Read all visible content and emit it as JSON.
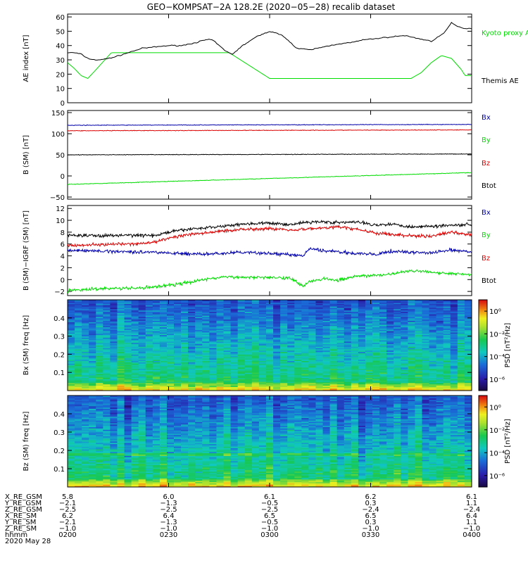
{
  "title": "GEO−KOMPSAT−2A 128.2E (2020−05−28) recalib dataset",
  "x_axis": {
    "ticks": [
      "0200",
      "0230",
      "0300",
      "0330",
      "0400"
    ],
    "start_min": 120,
    "end_min": 240
  },
  "ephemeris": {
    "rows": [
      {
        "label": "X_RE_GSM",
        "values": [
          "5.8",
          "6.0",
          "6.1",
          "6.2",
          "6.1"
        ]
      },
      {
        "label": "Y_RE_GSM",
        "values": [
          "−2.1",
          "−1.3",
          "−0.5",
          "0.3",
          "1.1"
        ]
      },
      {
        "label": "Z_RE_GSM",
        "values": [
          "−2.5",
          "−2.5",
          "−2.5",
          "−2.4",
          "−2.4"
        ]
      },
      {
        "label": "X_RE_SM",
        "values": [
          "6.2",
          "6.4",
          "6.5",
          "6.5",
          "6.4"
        ]
      },
      {
        "label": "Y_RE_SM",
        "values": [
          "−2.1",
          "−1.3",
          "−0.5",
          "0.3",
          "1.1"
        ]
      },
      {
        "label": "Z_RE_SM",
        "values": [
          "−1.0",
          "−1.0",
          "−1.0",
          "−1.0",
          "−1.0"
        ]
      },
      {
        "label": "hhmm",
        "values": [
          "0200",
          "0230",
          "0300",
          "0330",
          "0400"
        ]
      }
    ],
    "date": "2020 May 28"
  },
  "chart_data": [
    {
      "type": "line",
      "ylabel": "AE index [nT]",
      "ylim": [
        0,
        62
      ],
      "yticks": [
        "0",
        "10",
        "20",
        "30",
        "40",
        "50",
        "60"
      ],
      "series": [
        {
          "name": "Kyoto proxy AE",
          "color": "#00dd00",
          "x": [
            120,
            122,
            124,
            126,
            128,
            133,
            137,
            160,
            168,
            180,
            190,
            200,
            210,
            218,
            222,
            225,
            228,
            231,
            234,
            237,
            238
          ],
          "y": [
            28,
            24,
            19,
            17,
            22,
            35,
            35,
            35,
            35,
            17,
            17,
            17,
            17,
            17,
            17,
            21,
            28,
            33,
            31,
            23,
            19
          ]
        },
        {
          "name": "Themis AE",
          "color": "#000000",
          "x": [
            120,
            122,
            124,
            126,
            128,
            130,
            134,
            138,
            142,
            146,
            150,
            154,
            158,
            161,
            163,
            165,
            167,
            169,
            172,
            176,
            180,
            184,
            188,
            192,
            196,
            200,
            204,
            208,
            212,
            216,
            220,
            224,
            228,
            230,
            232,
            234,
            236,
            238,
            240
          ],
          "y": [
            35,
            35,
            34,
            31,
            30,
            30,
            32,
            35,
            38,
            39,
            40,
            40,
            42,
            44,
            44,
            40,
            36,
            34,
            40,
            46,
            50,
            47,
            38,
            37,
            39,
            41,
            42,
            44,
            45,
            46,
            47,
            45,
            43,
            46,
            49,
            56,
            53,
            52,
            52
          ]
        }
      ],
      "legend_position": "right"
    },
    {
      "type": "line",
      "ylabel": "B (SM) [nT]",
      "ylim": [
        -55,
        155
      ],
      "yticks": [
        "−50",
        "0",
        "50",
        "100",
        "150"
      ],
      "series": [
        {
          "name": "Bx",
          "color": "#0000aa",
          "x": [
            120,
            240
          ],
          "y": [
            120,
            122
          ]
        },
        {
          "name": "By",
          "color": "#00dd00",
          "x": [
            120,
            240
          ],
          "y": [
            -20,
            8
          ]
        },
        {
          "name": "Bz",
          "color": "#dd0000",
          "x": [
            120,
            240
          ],
          "y": [
            107,
            109
          ]
        },
        {
          "name": "Btot",
          "color": "#000000",
          "x": [
            120,
            240
          ],
          "y": [
            50,
            52
          ]
        }
      ],
      "legend_position": "right"
    },
    {
      "type": "line",
      "ylabel": "B (SM)−IGRF (SM) [nT]",
      "ylim": [
        -2.7,
        12.5
      ],
      "yticks": [
        "−2",
        "0",
        "2",
        "4",
        "6",
        "8",
        "10",
        "12"
      ],
      "series": [
        {
          "name": "Btot",
          "color": "#000000",
          "x": [
            120,
            130,
            140,
            146,
            150,
            156,
            160,
            166,
            172,
            180,
            186,
            190,
            196,
            200,
            206,
            212,
            216,
            222,
            228,
            234,
            240
          ],
          "y": [
            7.5,
            7.4,
            7.5,
            7.4,
            8.0,
            8.5,
            8.7,
            9.0,
            9.4,
            9.5,
            9.3,
            9.6,
            9.8,
            9.6,
            9.7,
            9.2,
            9.4,
            8.9,
            9.0,
            9.2,
            9.3
          ]
        },
        {
          "name": "Bz",
          "color": "#dd0000",
          "x": [
            120,
            130,
            140,
            146,
            150,
            156,
            160,
            166,
            172,
            180,
            186,
            190,
            196,
            200,
            206,
            212,
            216,
            222,
            228,
            234,
            240
          ],
          "y": [
            5.8,
            5.9,
            6.0,
            6.3,
            7.0,
            7.6,
            7.8,
            8.2,
            8.5,
            8.6,
            8.4,
            8.5,
            8.7,
            8.9,
            8.5,
            7.8,
            7.6,
            7.4,
            7.3,
            8.0,
            7.6
          ]
        },
        {
          "name": "Bx",
          "color": "#0000aa",
          "x": [
            120,
            130,
            140,
            146,
            150,
            156,
            160,
            166,
            172,
            180,
            186,
            190,
            192,
            196,
            200,
            206,
            212,
            216,
            222,
            228,
            234,
            240
          ],
          "y": [
            4.9,
            4.8,
            4.7,
            4.6,
            4.5,
            4.3,
            4.3,
            4.4,
            4.6,
            4.4,
            4.2,
            4.0,
            5.2,
            4.9,
            4.7,
            4.4,
            4.2,
            4.8,
            4.6,
            4.5,
            5.0,
            4.6
          ]
        },
        {
          "name": "By",
          "color": "#00dd00",
          "x": [
            120,
            130,
            140,
            146,
            150,
            156,
            160,
            166,
            172,
            180,
            186,
            190,
            192,
            196,
            200,
            206,
            212,
            216,
            222,
            228,
            234,
            240
          ],
          "y": [
            -1.9,
            -1.5,
            -1.5,
            -1.2,
            -1.0,
            -0.5,
            0.0,
            0.4,
            0.4,
            0.4,
            0.3,
            -1.1,
            -0.3,
            0.2,
            -0.2,
            0.6,
            0.7,
            0.9,
            1.5,
            1.3,
            1.0,
            0.9
          ]
        }
      ],
      "legend": [
        "Bx",
        "By",
        "Bz",
        "Btot"
      ],
      "legend_colors": [
        "#0000aa",
        "#00dd00",
        "#dd0000",
        "#000000"
      ],
      "legend_position": "right"
    },
    {
      "type": "heatmap",
      "ylabel": "Bx (SM) freq [Hz]",
      "ylim": [
        0,
        0.5
      ],
      "yticks": [
        "0.1",
        "0.2",
        "0.3",
        "0.4"
      ],
      "colorbar_label": "PSD [nT²/Hz]",
      "colorbar_ticks": [
        "10⁰",
        "10⁻²",
        "10⁻⁴",
        "10⁻⁶"
      ],
      "colorbar_range": [
        -7,
        1
      ]
    },
    {
      "type": "heatmap",
      "ylabel": "Bz (SM) freq [Hz]",
      "ylim": [
        0,
        0.5
      ],
      "yticks": [
        "0.1",
        "0.2",
        "0.3",
        "0.4"
      ],
      "colorbar_label": "PSD [nT²/Hz]",
      "colorbar_ticks": [
        "10⁰",
        "10⁻²",
        "10⁻⁴",
        "10⁻⁶"
      ],
      "colorbar_range": [
        -7,
        1
      ]
    }
  ]
}
